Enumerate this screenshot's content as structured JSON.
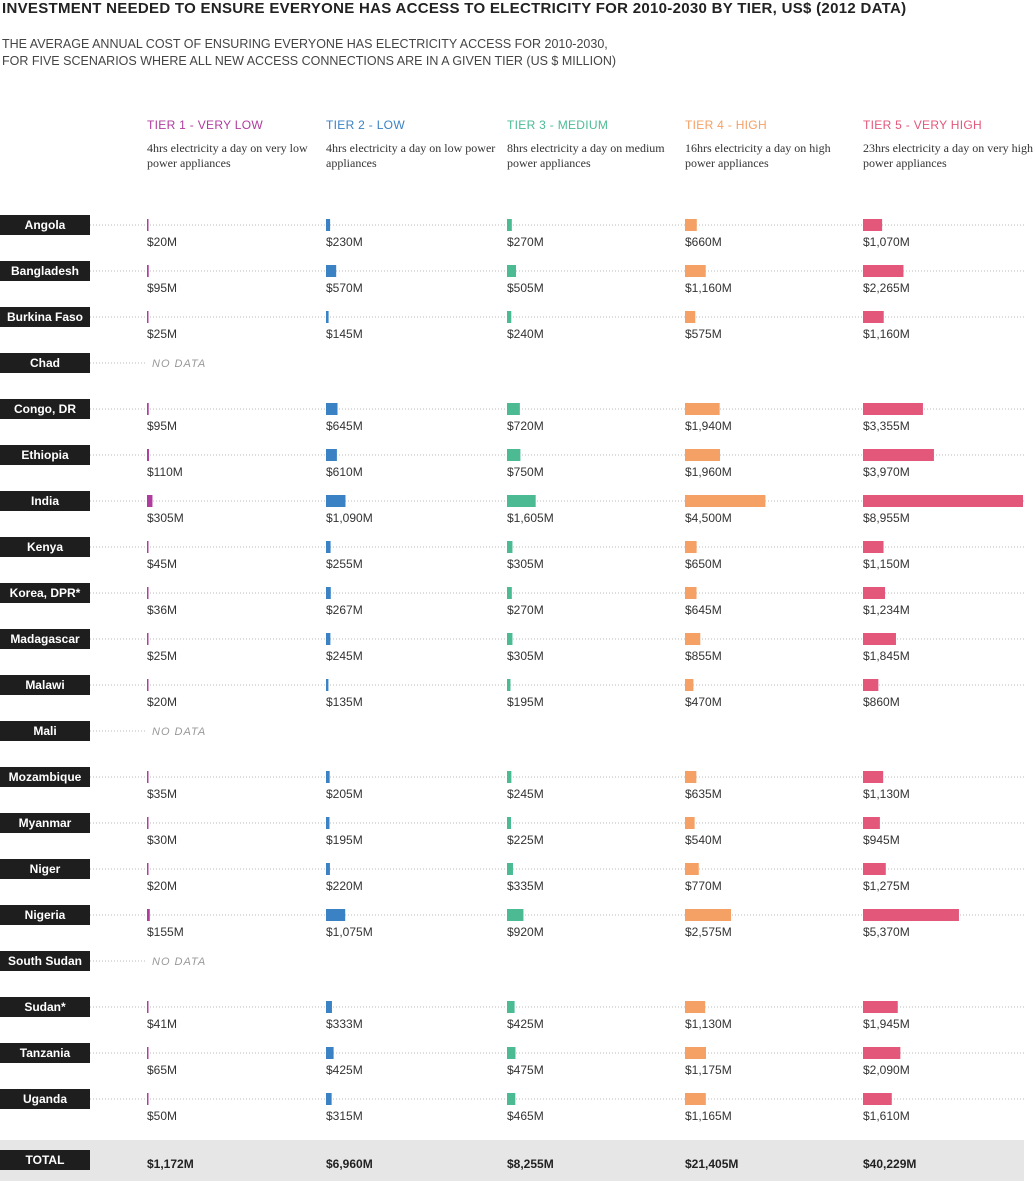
{
  "chart_data": {
    "type": "bar",
    "title": "INVESTMENT NEEDED TO ENSURE EVERYONE HAS ACCESS TO ELECTRICITY FOR 2010-2030 BY TIER, US$ (2012 DATA)",
    "subtitle": "THE AVERAGE ANNUAL COST OF ENSURING EVERYONE HAS ELECTRICITY ACCESS FOR 2010-2030, FOR FIVE SCENARIOS WHERE ALL NEW ACCESS CONNECTIONS ARE IN A GIVEN TIER (US $ MILLION)",
    "categories": [
      "Angola",
      "Bangladesh",
      "Burkina Faso",
      "Chad",
      "Congo, DR",
      "Ethiopia",
      "India",
      "Kenya",
      "Korea, DPR*",
      "Madagascar",
      "Malawi",
      "Mali",
      "Mozambique",
      "Myanmar",
      "Niger",
      "Nigeria",
      "South Sudan",
      "Sudan*",
      "Tanzania",
      "Uganda"
    ],
    "no_data_label": "NO DATA",
    "total_name": "TOTAL",
    "series": [
      {
        "name": "TIER 1 - VERY LOW",
        "description": "4hrs electricity a day on very low power appliances",
        "color": "#b03c9e",
        "values": [
          20,
          95,
          25,
          null,
          95,
          110,
          305,
          45,
          36,
          25,
          20,
          null,
          35,
          30,
          20,
          155,
          null,
          41,
          65,
          50
        ],
        "value_labels": [
          "$20M",
          "$95M",
          "$25M",
          null,
          "$95M",
          "$110M",
          "$305M",
          "$45M",
          "$36M",
          "$25M",
          "$20M",
          null,
          "$35M",
          "$30M",
          "$20M",
          "$155M",
          null,
          "$41M",
          "$65M",
          "$50M"
        ],
        "total": 1172,
        "total_label": "$1,172M"
      },
      {
        "name": "TIER 2 - LOW",
        "description": "4hrs electricity a day on low power appliances",
        "color": "#3a82c4",
        "values": [
          230,
          570,
          145,
          null,
          645,
          610,
          1090,
          255,
          267,
          245,
          135,
          null,
          205,
          195,
          220,
          1075,
          null,
          333,
          425,
          315
        ],
        "value_labels": [
          "$230M",
          "$570M",
          "$145M",
          null,
          "$645M",
          "$610M",
          "$1,090M",
          "$255M",
          "$267M",
          "$245M",
          "$135M",
          null,
          "$205M",
          "$195M",
          "$220M",
          "$1,075M",
          null,
          "$333M",
          "$425M",
          "$315M"
        ],
        "total": 6960,
        "total_label": "$6,960M"
      },
      {
        "name": "TIER 3 - MEDIUM",
        "description": "8hrs electricity a day on medium power appliances",
        "color": "#4cbb94",
        "values": [
          270,
          505,
          240,
          null,
          720,
          750,
          1605,
          305,
          270,
          305,
          195,
          null,
          245,
          225,
          335,
          920,
          null,
          425,
          475,
          465
        ],
        "value_labels": [
          "$270M",
          "$505M",
          "$240M",
          null,
          "$720M",
          "$750M",
          "$1,605M",
          "$305M",
          "$270M",
          "$305M",
          "$195M",
          null,
          "$245M",
          "$225M",
          "$335M",
          "$920M",
          null,
          "$425M",
          "$475M",
          "$465M"
        ],
        "total": 8255,
        "total_label": "$8,255M"
      },
      {
        "name": "TIER 4 - HIGH",
        "description": "16hrs electricity a day on high power appliances",
        "color": "#f5a064",
        "values": [
          660,
          1160,
          575,
          null,
          1940,
          1960,
          4500,
          650,
          645,
          855,
          470,
          null,
          635,
          540,
          770,
          2575,
          null,
          1130,
          1175,
          1165
        ],
        "value_labels": [
          "$660M",
          "$1,160M",
          "$575M",
          null,
          "$1,940M",
          "$1,960M",
          "$4,500M",
          "$650M",
          "$645M",
          "$855M",
          "$470M",
          null,
          "$635M",
          "$540M",
          "$770M",
          "$2,575M",
          null,
          "$1,130M",
          "$1,175M",
          "$1,165M"
        ],
        "total": 21405,
        "total_label": "$21,405M"
      },
      {
        "name": "TIER 5 - VERY HIGH",
        "description": "23hrs electricity a day on very high power appliances",
        "color": "#e3577a",
        "values": [
          1070,
          2265,
          1160,
          null,
          3355,
          3970,
          8955,
          1150,
          1234,
          1845,
          860,
          null,
          1130,
          945,
          1275,
          5370,
          null,
          1945,
          2090,
          1610
        ],
        "value_labels": [
          "$1,070M",
          "$2,265M",
          "$1,160M",
          null,
          "$3,355M",
          "$3,970M",
          "$8,955M",
          "$1,150M",
          "$1,234M",
          "$1,845M",
          "$860M",
          null,
          "$1,130M",
          "$945M",
          "$1,275M",
          "$5,370M",
          null,
          "$1,945M",
          "$2,090M",
          "$1,610M"
        ],
        "total": 40229,
        "total_label": "$40,229M"
      }
    ]
  }
}
